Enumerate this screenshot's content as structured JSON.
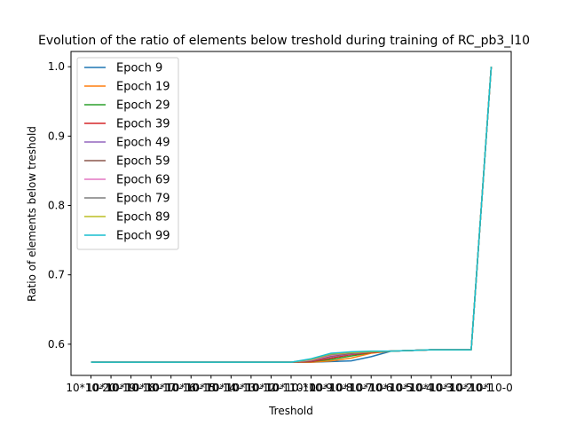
{
  "chart_data": {
    "type": "line",
    "title": "Evolution of the ratio of elements below treshold during training of RC_pb3_l10",
    "xlabel": "Treshold",
    "ylabel": "Ratio of elements below treshold",
    "categories": [
      "10*10-20",
      "10*10-19",
      "10*10-18",
      "10*10-17",
      "10*10-16",
      "10*10-15",
      "10*10-14",
      "10*10-13",
      "10*10-12",
      "10*10-11",
      "10*10-10",
      "10*10-9",
      "10*10-8",
      "10*10-7",
      "10*10-6",
      "10*10-5",
      "10*10-4",
      "10*10-3",
      "10*10-2",
      "10*10-1",
      "10*10-0"
    ],
    "ylim": [
      0.555,
      1.022
    ],
    "yticks": [
      0.6,
      0.7,
      0.8,
      0.9,
      1.0
    ],
    "ytick_labels": [
      "0.6",
      "0.7",
      "0.8",
      "0.9",
      "1.0"
    ],
    "legend_position": "upper-left",
    "grid": false,
    "series": [
      {
        "name": "Epoch 9",
        "color": "#1f77b4",
        "values": [
          0.574,
          0.574,
          0.574,
          0.574,
          0.574,
          0.574,
          0.574,
          0.574,
          0.574,
          0.574,
          0.574,
          0.574,
          0.575,
          0.576,
          0.582,
          0.59,
          0.591,
          0.592,
          0.592,
          0.592,
          1.0
        ]
      },
      {
        "name": "Epoch 19",
        "color": "#ff7f0e",
        "values": [
          0.574,
          0.574,
          0.574,
          0.574,
          0.574,
          0.574,
          0.574,
          0.574,
          0.574,
          0.574,
          0.574,
          0.574,
          0.576,
          0.58,
          0.587,
          0.59,
          0.591,
          0.592,
          0.592,
          0.592,
          1.0
        ]
      },
      {
        "name": "Epoch 29",
        "color": "#2ca02c",
        "values": [
          0.574,
          0.574,
          0.574,
          0.574,
          0.574,
          0.574,
          0.574,
          0.574,
          0.574,
          0.574,
          0.574,
          0.575,
          0.578,
          0.583,
          0.588,
          0.59,
          0.591,
          0.592,
          0.592,
          0.592,
          1.0
        ]
      },
      {
        "name": "Epoch 39",
        "color": "#d62728",
        "values": [
          0.574,
          0.574,
          0.574,
          0.574,
          0.574,
          0.574,
          0.574,
          0.574,
          0.574,
          0.574,
          0.574,
          0.575,
          0.58,
          0.585,
          0.588,
          0.59,
          0.591,
          0.592,
          0.592,
          0.592,
          1.0
        ]
      },
      {
        "name": "Epoch 49",
        "color": "#9467bd",
        "values": [
          0.574,
          0.574,
          0.574,
          0.574,
          0.574,
          0.574,
          0.574,
          0.574,
          0.574,
          0.574,
          0.574,
          0.576,
          0.582,
          0.586,
          0.589,
          0.59,
          0.591,
          0.592,
          0.592,
          0.592,
          1.0
        ]
      },
      {
        "name": "Epoch 59",
        "color": "#8c564b",
        "values": [
          0.574,
          0.574,
          0.574,
          0.574,
          0.574,
          0.574,
          0.574,
          0.574,
          0.574,
          0.574,
          0.574,
          0.576,
          0.583,
          0.587,
          0.589,
          0.59,
          0.591,
          0.592,
          0.592,
          0.592,
          1.0
        ]
      },
      {
        "name": "Epoch 69",
        "color": "#e377c2",
        "values": [
          0.574,
          0.574,
          0.574,
          0.574,
          0.574,
          0.574,
          0.574,
          0.574,
          0.574,
          0.574,
          0.574,
          0.577,
          0.584,
          0.588,
          0.589,
          0.59,
          0.591,
          0.592,
          0.592,
          0.592,
          1.0
        ]
      },
      {
        "name": "Epoch 79",
        "color": "#7f7f7f",
        "values": [
          0.574,
          0.574,
          0.574,
          0.574,
          0.574,
          0.574,
          0.574,
          0.574,
          0.574,
          0.574,
          0.574,
          0.578,
          0.585,
          0.588,
          0.589,
          0.59,
          0.591,
          0.592,
          0.592,
          0.592,
          1.0
        ]
      },
      {
        "name": "Epoch 89",
        "color": "#bcbd22",
        "values": [
          0.574,
          0.574,
          0.574,
          0.574,
          0.574,
          0.574,
          0.574,
          0.574,
          0.574,
          0.574,
          0.574,
          0.578,
          0.586,
          0.588,
          0.589,
          0.59,
          0.591,
          0.592,
          0.592,
          0.592,
          1.0
        ]
      },
      {
        "name": "Epoch 99",
        "color": "#17becf",
        "values": [
          0.574,
          0.574,
          0.574,
          0.574,
          0.574,
          0.574,
          0.574,
          0.574,
          0.574,
          0.574,
          0.574,
          0.579,
          0.587,
          0.589,
          0.59,
          0.59,
          0.591,
          0.592,
          0.592,
          0.592,
          1.0
        ]
      }
    ]
  }
}
